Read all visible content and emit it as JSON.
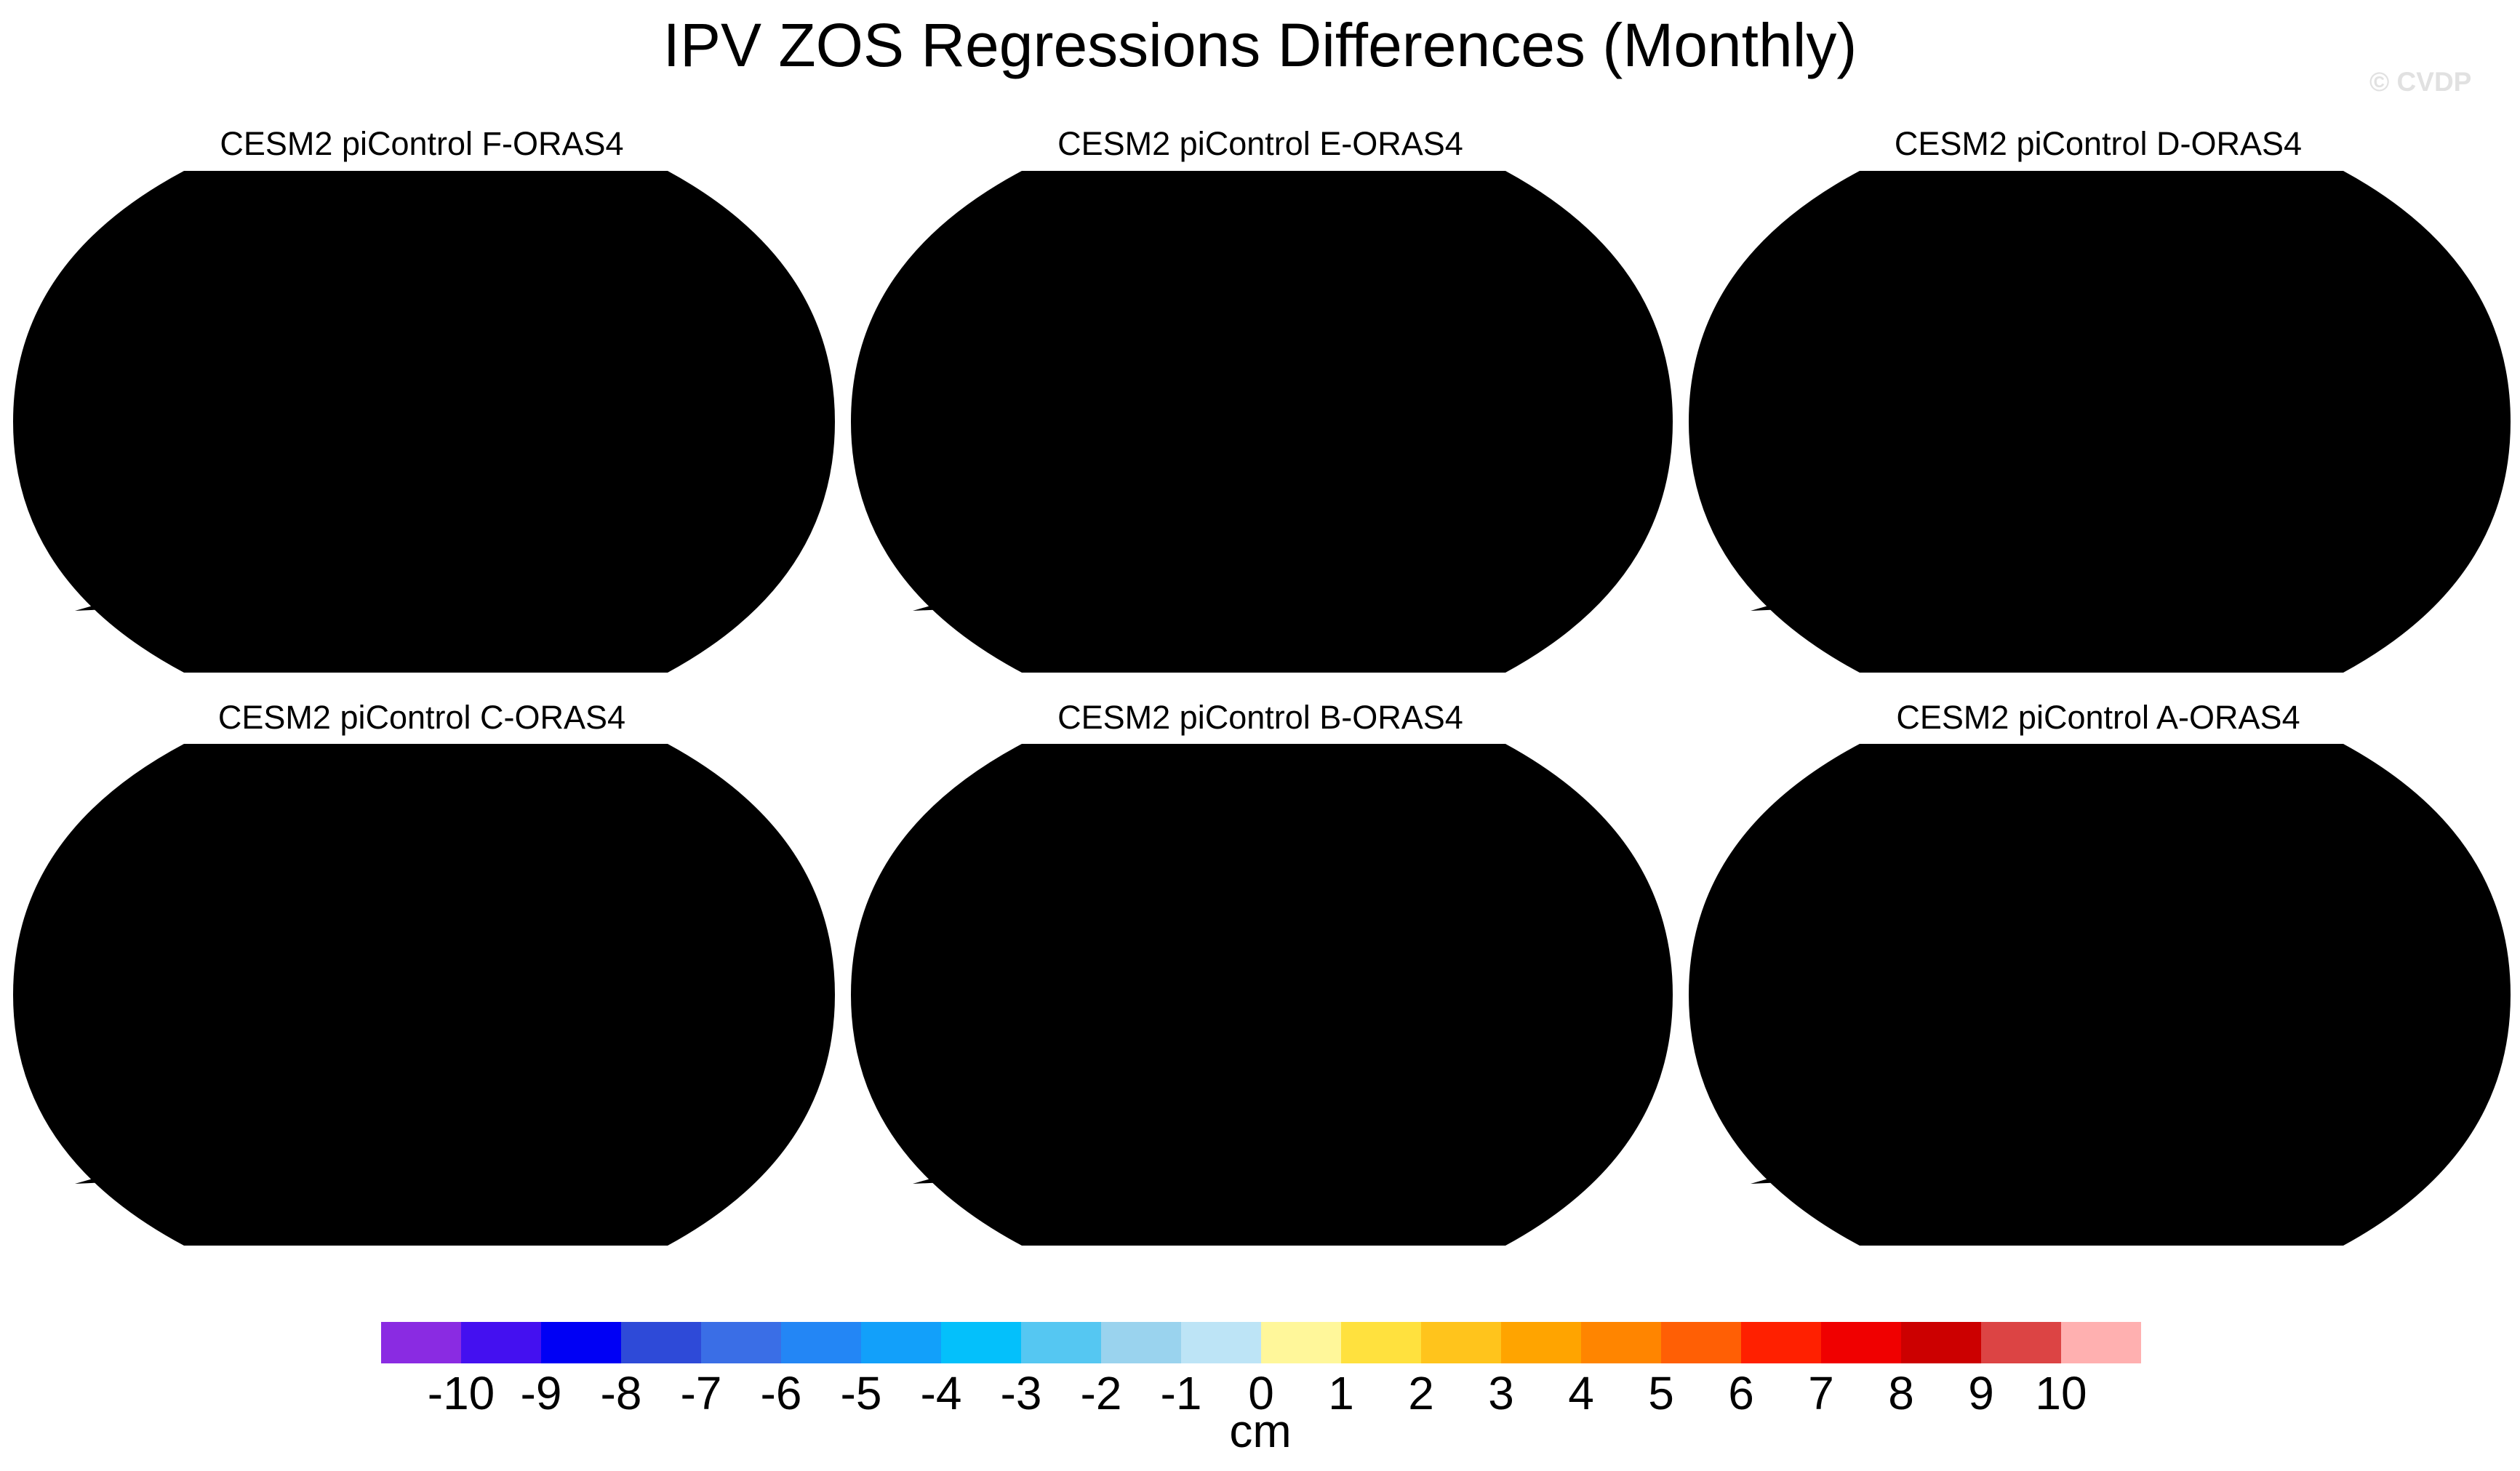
{
  "title": "IPV ZOS Regressions Differences (Monthly)",
  "watermark": "© CVDP",
  "panels": [
    {
      "title": "CESM2 piControl F-ORAS4"
    },
    {
      "title": "CESM2 piControl E-ORAS4"
    },
    {
      "title": "CESM2 piControl D-ORAS4"
    },
    {
      "title": "CESM2 piControl C-ORAS4"
    },
    {
      "title": "CESM2 piControl B-ORAS4"
    },
    {
      "title": "CESM2 piControl A-ORAS4"
    }
  ],
  "colorbar": {
    "colors": [
      "#8a2be2",
      "#4410f0",
      "#0000f5",
      "#2e4ad8",
      "#3a6ee6",
      "#2386f5",
      "#12a0fa",
      "#04c0fb",
      "#55c7f2",
      "#9ad3ee",
      "#bde4f6",
      "#fff79a",
      "#ffe13e",
      "#ffc41c",
      "#ffa400",
      "#ff8500",
      "#ff5f05",
      "#ff2000",
      "#f00000",
      "#cc0000",
      "#dc4444",
      "#ffb0b0"
    ],
    "tick_labels": [
      "-10",
      "-9",
      "-8",
      "-7",
      "-6",
      "-5",
      "-4",
      "-3",
      "-2",
      "-1",
      "0",
      "1",
      "2",
      "3",
      "4",
      "5",
      "6",
      "7",
      "8",
      "9",
      "10"
    ],
    "unit": "cm"
  }
}
